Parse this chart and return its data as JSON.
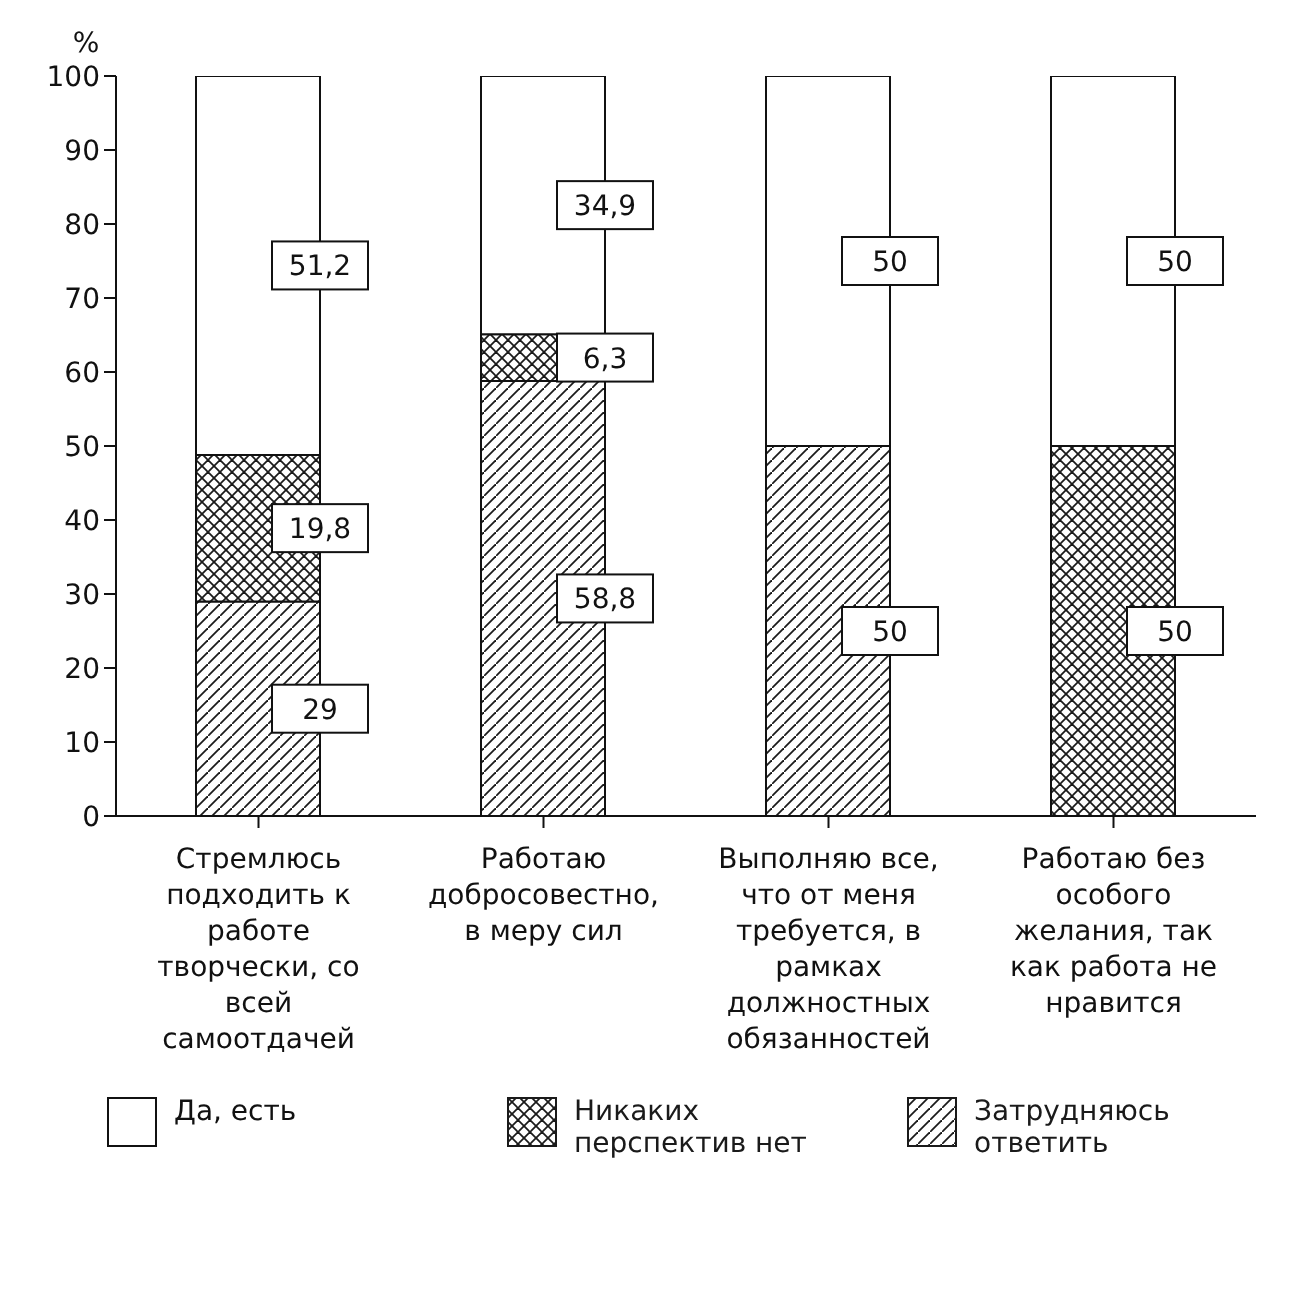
{
  "chart_data": {
    "type": "bar",
    "stacked": true,
    "ylabel": "%",
    "categories": [
      "Стремлюсь подходить к работе творчески, со всей самоотдачей",
      "Работаю добросовестно, в меру сил",
      "Выполняю все, что от меня требуется, в рамках должностных обязанностей",
      "Работаю без особого желания, так как работа не нравится"
    ],
    "series": [
      {
        "name": "Затрудняюсь ответить",
        "color": "#1a1a1a",
        "values": [
          29,
          58.8,
          50,
          null
        ],
        "value_labels": [
          "29",
          "58,8",
          "50",
          null
        ]
      },
      {
        "name": "Никаких перспектив нет",
        "color": "#1a1a1a",
        "values": [
          19.8,
          6.3,
          null,
          50
        ],
        "value_labels": [
          "19,8",
          "6,3",
          null,
          "50"
        ]
      },
      {
        "name": "Да, есть",
        "color": "#ffffff",
        "values": [
          51.2,
          34.9,
          50,
          50
        ],
        "value_labels": [
          "51,2",
          "34,9",
          "50",
          "50"
        ]
      }
    ],
    "ylim": [
      0,
      100
    ],
    "yticks": [
      0,
      10,
      20,
      30,
      40,
      50,
      60,
      70,
      80,
      90,
      100
    ],
    "grid": false,
    "legend": "bottom"
  }
}
